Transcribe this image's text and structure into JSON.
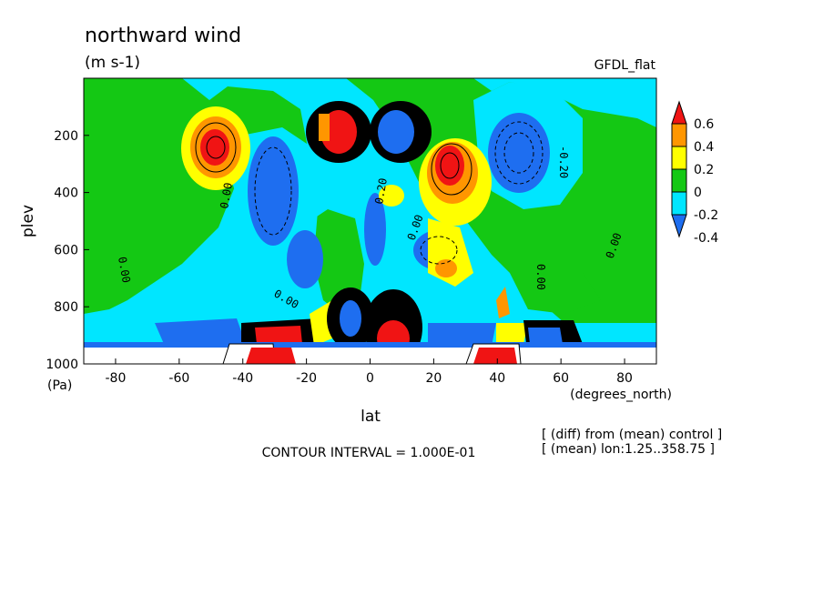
{
  "chart_data": {
    "type": "heatmap",
    "title": "northward wind",
    "units": "(m s-1)",
    "model": "GFDL_flat",
    "xlabel": "lat",
    "xunits": "(degrees_north)",
    "ylabel": "plev",
    "yunits": "(Pa)",
    "x_range": [
      -90,
      90
    ],
    "y_range": [
      1000,
      0
    ],
    "y_axis": "reversed (pressure decreases upward)",
    "x_ticks": [
      "-80",
      "-60",
      "-40",
      "-20",
      "0",
      "20",
      "40",
      "60",
      "80"
    ],
    "y_ticks": [
      "200",
      "400",
      "600",
      "800",
      "1000"
    ],
    "contour_interval": "CONTOUR INTERVAL = 1.000E-01",
    "colorbar": {
      "labels": [
        "0.6",
        "0.4",
        "0.2",
        "0",
        "-0.2",
        "-0.4"
      ],
      "levels": [
        -0.4,
        -0.2,
        0,
        0.2,
        0.4,
        0.6
      ],
      "colors": [
        "#1e6ef0",
        "#00e6ff",
        "#14c814",
        "#ffff00",
        "#ff9600",
        "#f01414"
      ],
      "extend": "both"
    },
    "contour_labels": [
      "0.00",
      "0.20",
      "0.10",
      "-0.20"
    ],
    "features": [
      {
        "lat": -48,
        "plev": 280,
        "value": 0.6
      },
      {
        "lat": -32,
        "plev": 320,
        "value": -0.4
      },
      {
        "lat": -7,
        "plev": 200,
        "value": 0.7
      },
      {
        "lat": 6,
        "plev": 210,
        "value": -0.7
      },
      {
        "lat": 30,
        "plev": 320,
        "value": 0.6
      },
      {
        "lat": 47,
        "plev": 250,
        "value": -0.4
      },
      {
        "lat": 7,
        "plev": 880,
        "value": 0.7
      },
      {
        "lat": -5,
        "plev": 860,
        "value": -0.6
      },
      {
        "lat": 30,
        "plev": 620,
        "value": 0.3
      }
    ],
    "grid": false,
    "legend": "right"
  },
  "notes": {
    "diff": "[ (diff) from (mean) control ]",
    "mean": "[ (mean) lon:1.25..358.75 ]"
  }
}
